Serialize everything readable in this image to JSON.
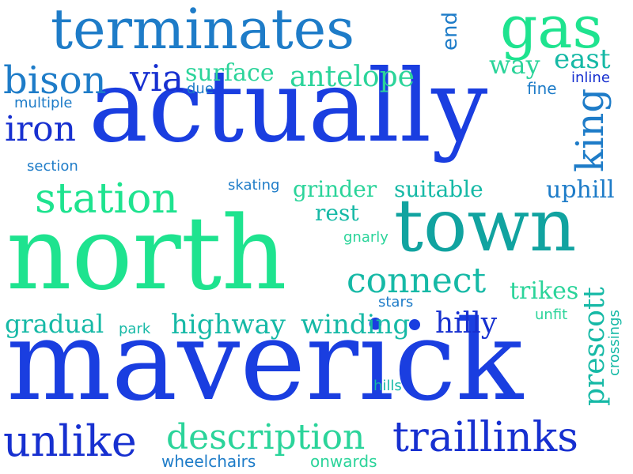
{
  "colors": {
    "blue": "#1a3ee0",
    "navy": "#1730d0",
    "teal": "#11a3a0",
    "aqua": "#16b9a6",
    "green": "#1ee38f",
    "mint": "#2bd49a",
    "sky": "#1e7cc8"
  },
  "words": [
    {
      "id": "actually",
      "text": "actually",
      "color": "blue"
    },
    {
      "id": "maverick",
      "text": "maverick",
      "color": "blue"
    },
    {
      "id": "north",
      "text": "north",
      "color": "green"
    },
    {
      "id": "town",
      "text": "town",
      "color": "teal"
    },
    {
      "id": "terminates",
      "text": "terminates",
      "color": "sky"
    },
    {
      "id": "gas",
      "text": "gas",
      "color": "green"
    },
    {
      "id": "traillinks",
      "text": "traillinks",
      "color": "navy"
    },
    {
      "id": "unlike",
      "text": "unlike",
      "color": "navy"
    },
    {
      "id": "description",
      "text": "description",
      "color": "mint"
    },
    {
      "id": "station",
      "text": "station",
      "color": "green"
    },
    {
      "id": "connect",
      "text": "connect",
      "color": "aqua"
    },
    {
      "id": "bison",
      "text": "bison",
      "color": "sky"
    },
    {
      "id": "antelope",
      "text": "antelope",
      "color": "mint"
    },
    {
      "id": "iron",
      "text": "iron",
      "color": "navy"
    },
    {
      "id": "via",
      "text": "via",
      "color": "navy"
    },
    {
      "id": "surface",
      "text": "surface",
      "color": "mint"
    },
    {
      "id": "east",
      "text": "east",
      "color": "aqua"
    },
    {
      "id": "way",
      "text": "way",
      "color": "mint"
    },
    {
      "id": "king",
      "text": "king",
      "color": "sky"
    },
    {
      "id": "prescott",
      "text": "prescott",
      "color": "aqua"
    },
    {
      "id": "highway",
      "text": "highway",
      "color": "aqua"
    },
    {
      "id": "winding",
      "text": "winding",
      "color": "aqua"
    },
    {
      "id": "gradual",
      "text": "gradual",
      "color": "aqua"
    },
    {
      "id": "hilly",
      "text": "hilly",
      "color": "navy"
    },
    {
      "id": "grinder",
      "text": "grinder",
      "color": "mint"
    },
    {
      "id": "suitable",
      "text": "suitable",
      "color": "aqua"
    },
    {
      "id": "uphill",
      "text": "uphill",
      "color": "sky"
    },
    {
      "id": "rest",
      "text": "rest",
      "color": "aqua"
    },
    {
      "id": "trikes",
      "text": "trikes",
      "color": "mint"
    },
    {
      "id": "end",
      "text": "end",
      "color": "sky"
    },
    {
      "id": "multiple",
      "text": "multiple",
      "color": "sky"
    },
    {
      "id": "due",
      "text": "due",
      "color": "sky"
    },
    {
      "id": "fine",
      "text": "fine",
      "color": "sky"
    },
    {
      "id": "inline",
      "text": "inline",
      "color": "navy"
    },
    {
      "id": "section",
      "text": "section",
      "color": "sky"
    },
    {
      "id": "skating",
      "text": "skating",
      "color": "sky"
    },
    {
      "id": "gnarly",
      "text": "gnarly",
      "color": "mint"
    },
    {
      "id": "stars",
      "text": "stars",
      "color": "sky"
    },
    {
      "id": "unfit",
      "text": "unfit",
      "color": "mint"
    },
    {
      "id": "park",
      "text": "park",
      "color": "aqua"
    },
    {
      "id": "crossings",
      "text": "crossings",
      "color": "aqua"
    },
    {
      "id": "hills",
      "text": "hills",
      "color": "aqua"
    },
    {
      "id": "wheelchairs",
      "text": "wheelchairs",
      "color": "sky"
    },
    {
      "id": "onwards",
      "text": "onwards",
      "color": "mint"
    }
  ],
  "dot_color": "blue"
}
